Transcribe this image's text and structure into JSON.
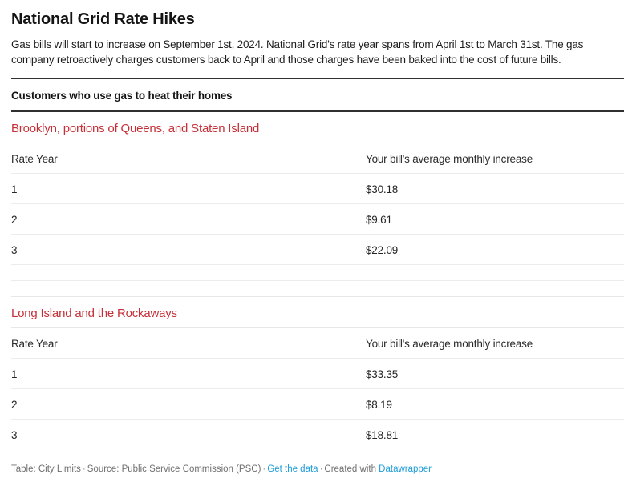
{
  "header": {
    "title": "National Grid Rate Hikes",
    "description": "Gas bills will start to increase on September 1st, 2024. National Grid's rate year spans from April 1st to March 31st. The gas company retroactively charges customers back to April and those charges have been baked into the cost of future bills."
  },
  "table": {
    "section_title": "Customers who use gas to heat their homes",
    "columns": {
      "col1": "Rate Year",
      "col2": "Your bill's average monthly increase"
    },
    "groups": [
      {
        "label": "Brooklyn, portions of Queens, and Staten Island",
        "rows": [
          [
            "1",
            "$30.18"
          ],
          [
            "2",
            "$9.61"
          ],
          [
            "3",
            "$22.09"
          ],
          [
            "",
            ""
          ]
        ]
      },
      {
        "label": "Long Island and the Rockaways",
        "rows": [
          [
            "1",
            "$33.35"
          ],
          [
            "2",
            "$8.19"
          ],
          [
            "3",
            "$18.81"
          ]
        ]
      }
    ]
  },
  "chart_data": {
    "type": "table",
    "title": "National Grid Rate Hikes",
    "section": "Customers who use gas to heat their homes",
    "columns": [
      "Rate Year",
      "Your bill's average monthly increase"
    ],
    "groups": [
      {
        "category": "Brooklyn, portions of Queens, and Staten Island",
        "rows": [
          {
            "rate_year": 1,
            "avg_monthly_increase_usd": 30.18
          },
          {
            "rate_year": 2,
            "avg_monthly_increase_usd": 9.61
          },
          {
            "rate_year": 3,
            "avg_monthly_increase_usd": 22.09
          }
        ]
      },
      {
        "category": "Long Island and the Rockaways",
        "rows": [
          {
            "rate_year": 1,
            "avg_monthly_increase_usd": 33.35
          },
          {
            "rate_year": 2,
            "avg_monthly_increase_usd": 8.19
          },
          {
            "rate_year": 3,
            "avg_monthly_increase_usd": 18.81
          }
        ]
      }
    ]
  },
  "footer": {
    "table_credit": "Table: City Limits",
    "separator": "·",
    "source_credit": "Source: Public Service Commission (PSC)",
    "get_data_link": "Get the data",
    "created_with_label": "Created with",
    "datawrapper_link": "Datawrapper"
  },
  "colors": {
    "category_red": "#c53038",
    "link_blue": "#1d9cd9",
    "rule_dark": "#303030",
    "row_border": "#ececec",
    "footer_gray": "#707070"
  }
}
